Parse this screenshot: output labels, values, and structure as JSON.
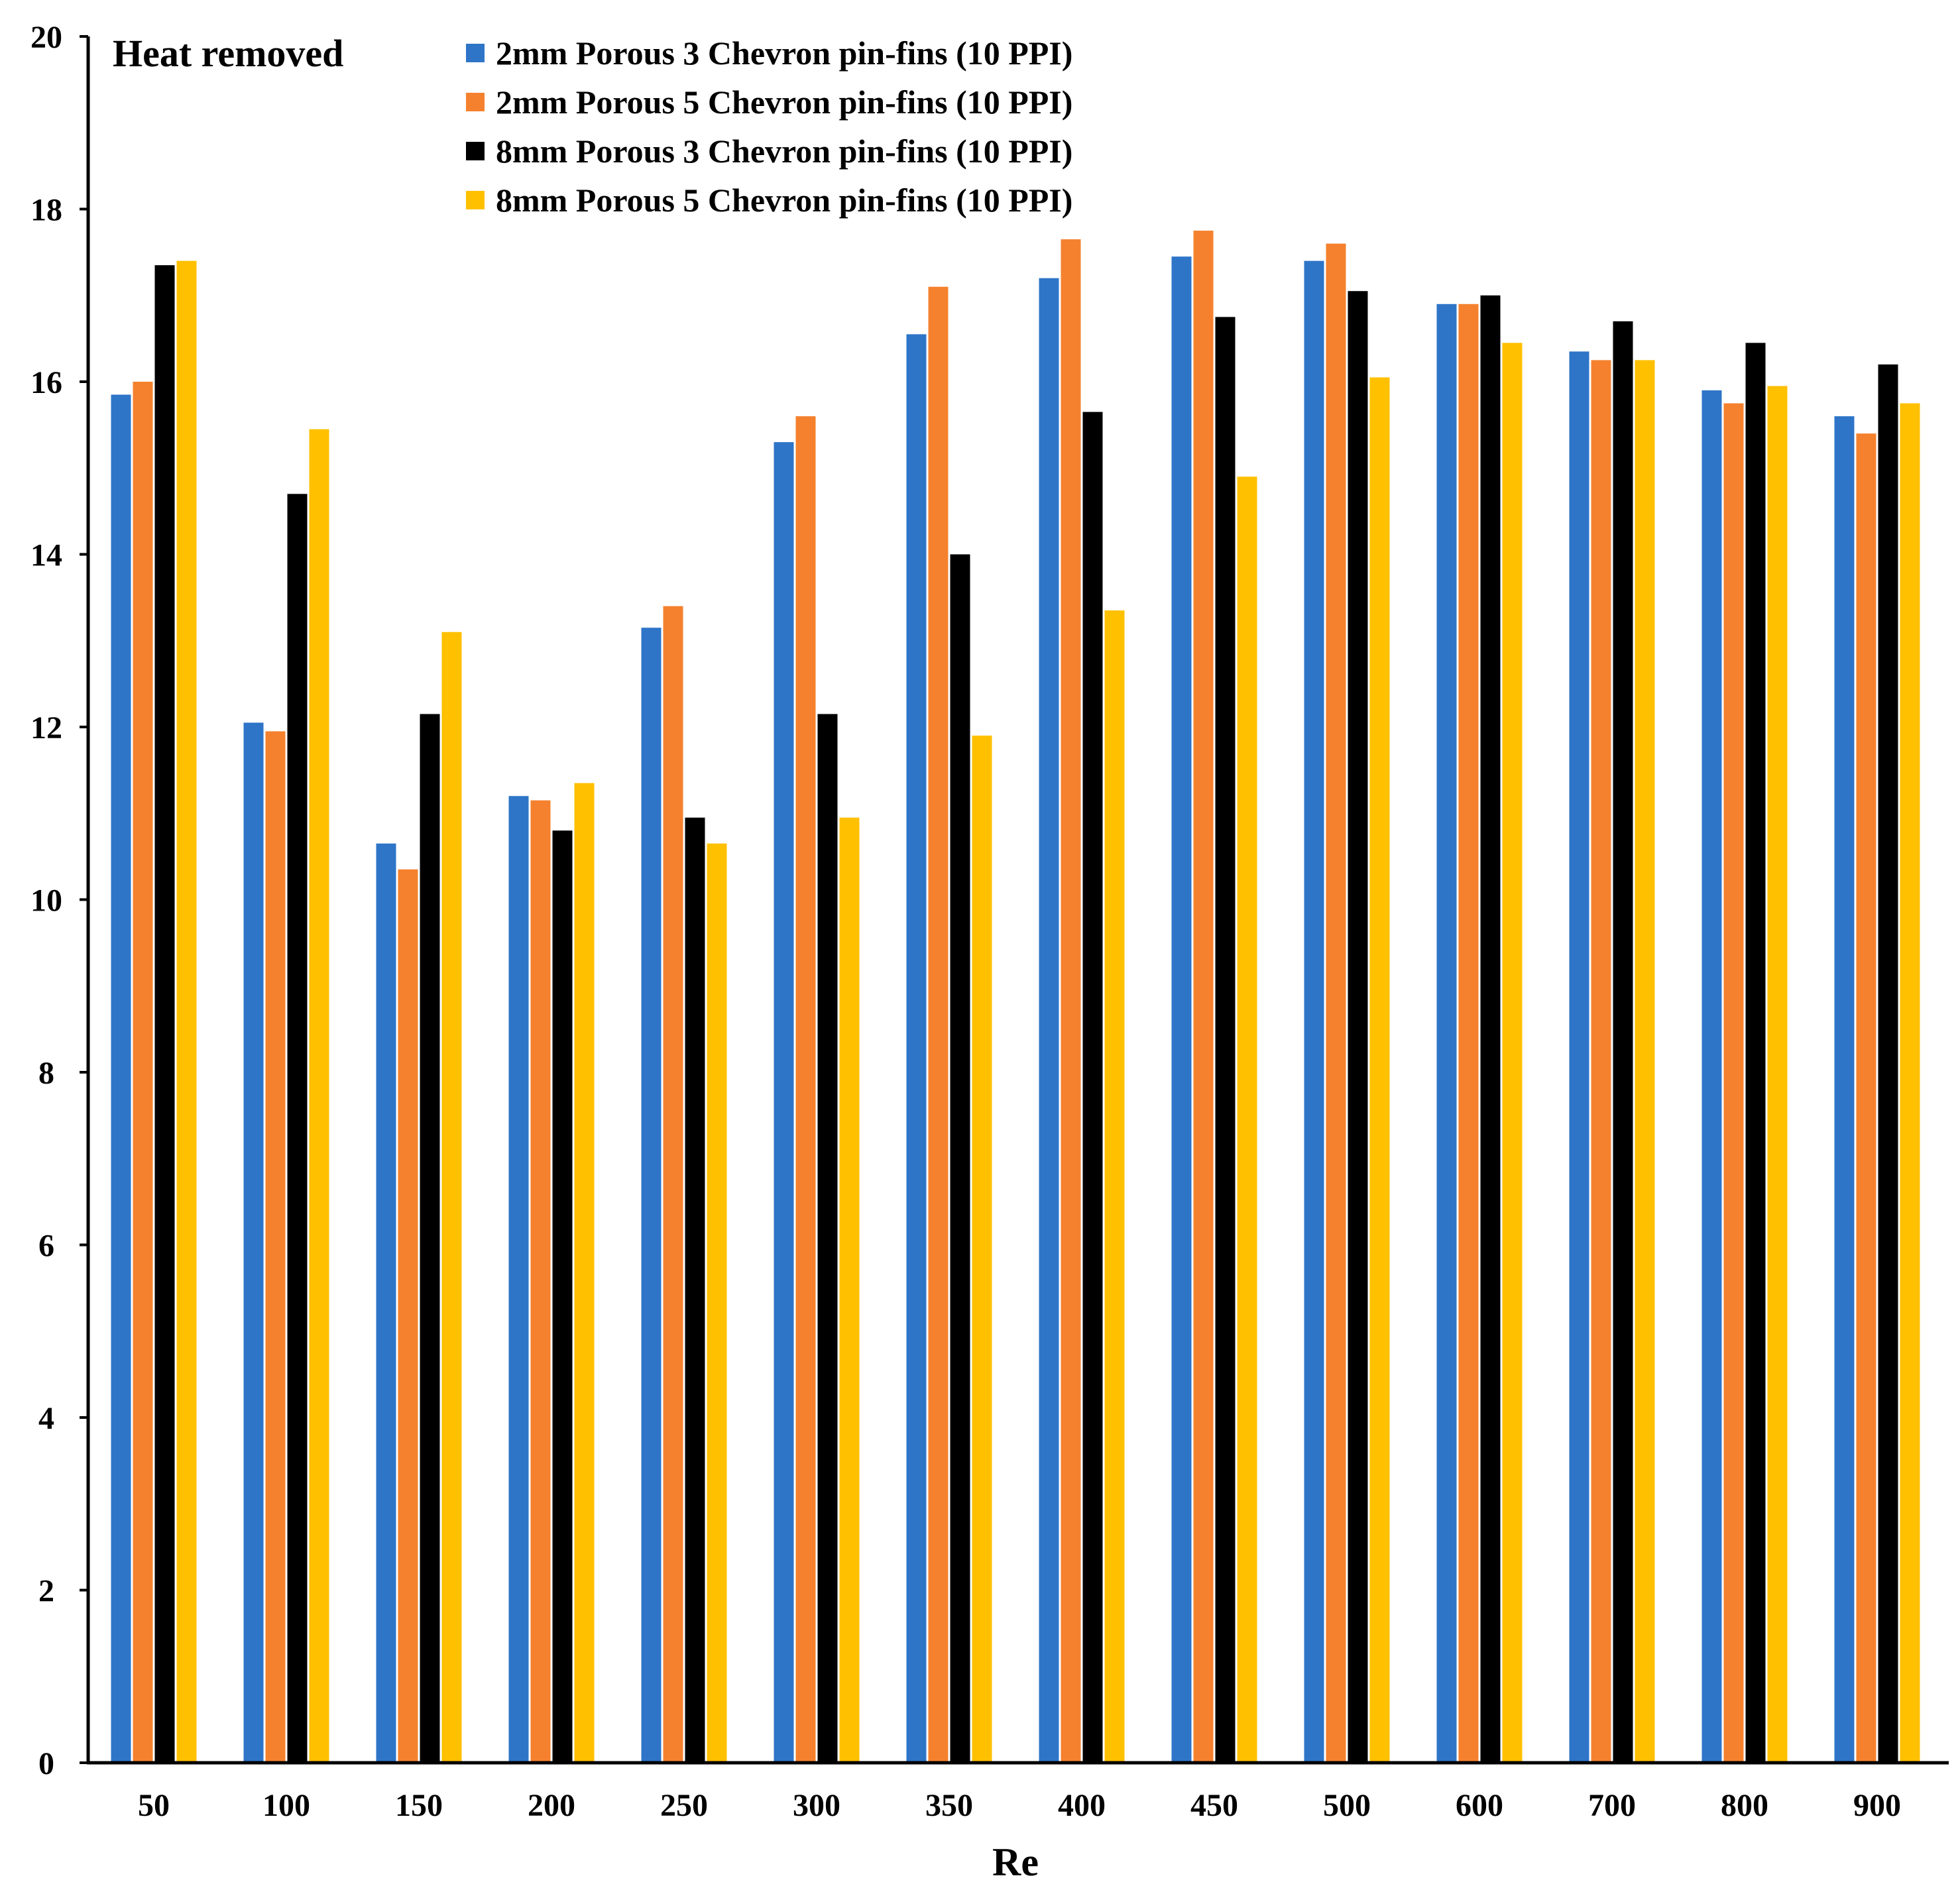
{
  "chart_data": {
    "type": "bar",
    "title": "Heat removed",
    "xlabel": "Re",
    "ylabel": "",
    "ylim": [
      0,
      20
    ],
    "yticks": [
      0,
      2,
      4,
      6,
      8,
      10,
      12,
      14,
      16,
      18,
      20
    ],
    "grid": false,
    "legend_position": "top-center",
    "categories": [
      "50",
      "100",
      "150",
      "200",
      "250",
      "300",
      "350",
      "400",
      "450",
      "500",
      "600",
      "700",
      "800",
      "900"
    ],
    "series": [
      {
        "name": "2mm Porous 3 Chevron pin-fins (10 PPI)",
        "color": "#2e75c8",
        "values": [
          15.85,
          12.05,
          10.65,
          11.2,
          13.15,
          15.3,
          16.55,
          17.2,
          17.45,
          17.4,
          16.9,
          16.35,
          15.9,
          15.6
        ]
      },
      {
        "name": "2mm Porous 5 Chevron pin-fins (10 PPI)",
        "color": "#f5812e",
        "values": [
          16.0,
          11.95,
          10.35,
          11.15,
          13.4,
          15.6,
          17.1,
          17.65,
          17.75,
          17.6,
          16.9,
          16.25,
          15.75,
          15.4
        ]
      },
      {
        "name": "8mm Porous 3 Chevron pin-fins (10 PPI)",
        "color": "#000000",
        "values": [
          17.35,
          14.7,
          12.15,
          10.8,
          10.95,
          12.15,
          14.0,
          15.65,
          16.75,
          17.05,
          17.0,
          16.7,
          16.45,
          16.2
        ]
      },
      {
        "name": "8mm Porous 5 Chevron pin-fins (10 PPI)",
        "color": "#ffc000",
        "values": [
          17.4,
          15.45,
          13.1,
          11.35,
          10.65,
          10.95,
          11.9,
          13.35,
          14.9,
          16.05,
          16.45,
          16.25,
          15.95,
          15.75
        ]
      }
    ]
  }
}
